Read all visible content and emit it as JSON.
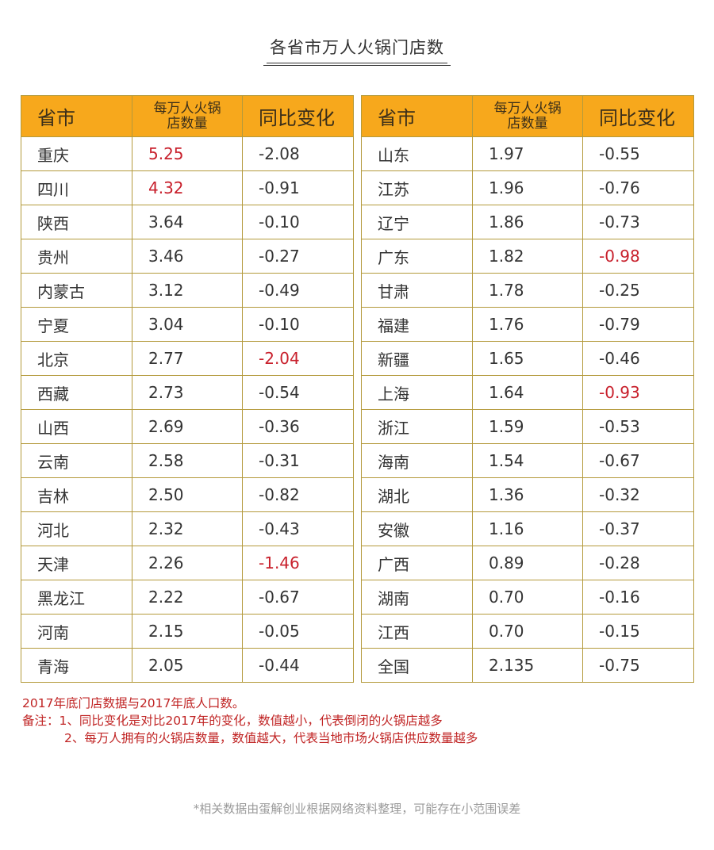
{
  "title": "各省市万人火锅门店数",
  "headers": {
    "province": "省市",
    "density_line1": "每万人火锅",
    "density_line2": "店数量",
    "change": "同比变化"
  },
  "colors": {
    "header_bg": "#f7a81c",
    "border": "#b49a3c",
    "highlight_red": "#c8202c",
    "note_red": "#c02424",
    "footer_gray": "#9a9a9a"
  },
  "left_table": [
    {
      "province": "重庆",
      "density": "5.25",
      "change": "-2.08",
      "density_red": true,
      "change_red": false
    },
    {
      "province": "四川",
      "density": "4.32",
      "change": "-0.91",
      "density_red": true,
      "change_red": false
    },
    {
      "province": "陕西",
      "density": "3.64",
      "change": "-0.10",
      "density_red": false,
      "change_red": false
    },
    {
      "province": "贵州",
      "density": "3.46",
      "change": "-0.27",
      "density_red": false,
      "change_red": false
    },
    {
      "province": "内蒙古",
      "density": "3.12",
      "change": "-0.49",
      "density_red": false,
      "change_red": false
    },
    {
      "province": "宁夏",
      "density": "3.04",
      "change": "-0.10",
      "density_red": false,
      "change_red": false
    },
    {
      "province": "北京",
      "density": "2.77",
      "change": "-2.04",
      "density_red": false,
      "change_red": true
    },
    {
      "province": "西藏",
      "density": "2.73",
      "change": "-0.54",
      "density_red": false,
      "change_red": false
    },
    {
      "province": "山西",
      "density": "2.69",
      "change": "-0.36",
      "density_red": false,
      "change_red": false
    },
    {
      "province": "云南",
      "density": "2.58",
      "change": "-0.31",
      "density_red": false,
      "change_red": false
    },
    {
      "province": "吉林",
      "density": "2.50",
      "change": "-0.82",
      "density_red": false,
      "change_red": false
    },
    {
      "province": "河北",
      "density": "2.32",
      "change": "-0.43",
      "density_red": false,
      "change_red": false
    },
    {
      "province": "天津",
      "density": "2.26",
      "change": "-1.46",
      "density_red": false,
      "change_red": true
    },
    {
      "province": "黑龙江",
      "density": "2.22",
      "change": "-0.67",
      "density_red": false,
      "change_red": false
    },
    {
      "province": "河南",
      "density": "2.15",
      "change": "-0.05",
      "density_red": false,
      "change_red": false
    },
    {
      "province": "青海",
      "density": "2.05",
      "change": "-0.44",
      "density_red": false,
      "change_red": false
    }
  ],
  "right_table": [
    {
      "province": "山东",
      "density": "1.97",
      "change": "-0.55",
      "density_red": false,
      "change_red": false
    },
    {
      "province": "江苏",
      "density": "1.96",
      "change": "-0.76",
      "density_red": false,
      "change_red": false
    },
    {
      "province": "辽宁",
      "density": "1.86",
      "change": "-0.73",
      "density_red": false,
      "change_red": false
    },
    {
      "province": "广东",
      "density": "1.82",
      "change": "-0.98",
      "density_red": false,
      "change_red": true
    },
    {
      "province": "甘肃",
      "density": "1.78",
      "change": "-0.25",
      "density_red": false,
      "change_red": false
    },
    {
      "province": "福建",
      "density": "1.76",
      "change": "-0.79",
      "density_red": false,
      "change_red": false
    },
    {
      "province": "新疆",
      "density": "1.65",
      "change": "-0.46",
      "density_red": false,
      "change_red": false
    },
    {
      "province": "上海",
      "density": "1.64",
      "change": "-0.93",
      "density_red": false,
      "change_red": true
    },
    {
      "province": "浙江",
      "density": "1.59",
      "change": "-0.53",
      "density_red": false,
      "change_red": false
    },
    {
      "province": "海南",
      "density": "1.54",
      "change": "-0.67",
      "density_red": false,
      "change_red": false
    },
    {
      "province": "湖北",
      "density": "1.36",
      "change": "-0.32",
      "density_red": false,
      "change_red": false
    },
    {
      "province": "安徽",
      "density": "1.16",
      "change": "-0.37",
      "density_red": false,
      "change_red": false
    },
    {
      "province": "广西",
      "density": "0.89",
      "change": "-0.28",
      "density_red": false,
      "change_red": false
    },
    {
      "province": "湖南",
      "density": "0.70",
      "change": "-0.16",
      "density_red": false,
      "change_red": false
    },
    {
      "province": "江西",
      "density": "0.70",
      "change": "-0.15",
      "density_red": false,
      "change_red": false
    },
    {
      "province": "全国",
      "density": "2.135",
      "change": "-0.75",
      "density_red": false,
      "change_red": false
    }
  ],
  "notes": {
    "line1": "2017年底门店数据与2017年底人口数。",
    "line2": "备注：1、同比变化是对比2017年的变化，数值越小，代表倒闭的火锅店越多",
    "line3": "2、每万人拥有的火锅店数量，数值越大，代表当地市场火锅店供应数量越多"
  },
  "footer": "*相关数据由蛋解创业根据网络资料整理，可能存在小范围误差"
}
